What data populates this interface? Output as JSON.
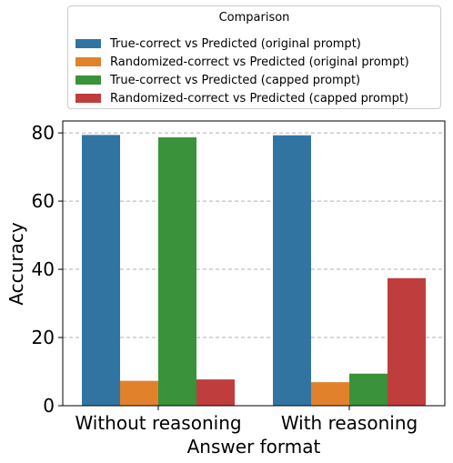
{
  "chart_data": {
    "type": "bar",
    "title": "",
    "xlabel": "Answer format",
    "ylabel": "Accuracy",
    "categories": [
      "Without reasoning",
      "With reasoning"
    ],
    "ylim": [
      0,
      83.5
    ],
    "yticks": [
      0,
      20,
      40,
      60,
      80
    ],
    "grid": "horizontal dashed",
    "legend": {
      "title": "Comparison",
      "placement": "top"
    },
    "series": [
      {
        "name": "True-correct vs Predicted (original prompt)",
        "color": "#3274a1",
        "values": [
          79.4,
          79.3
        ]
      },
      {
        "name": "Randomized-correct vs Predicted (original prompt)",
        "color": "#e1812c",
        "values": [
          7.3,
          6.9
        ]
      },
      {
        "name": "True-correct vs Predicted (capped prompt)",
        "color": "#3a923a",
        "values": [
          78.7,
          9.4
        ]
      },
      {
        "name": "Randomized-correct vs Predicted (capped prompt)",
        "color": "#c03d3e",
        "values": [
          7.7,
          37.4
        ]
      }
    ]
  }
}
